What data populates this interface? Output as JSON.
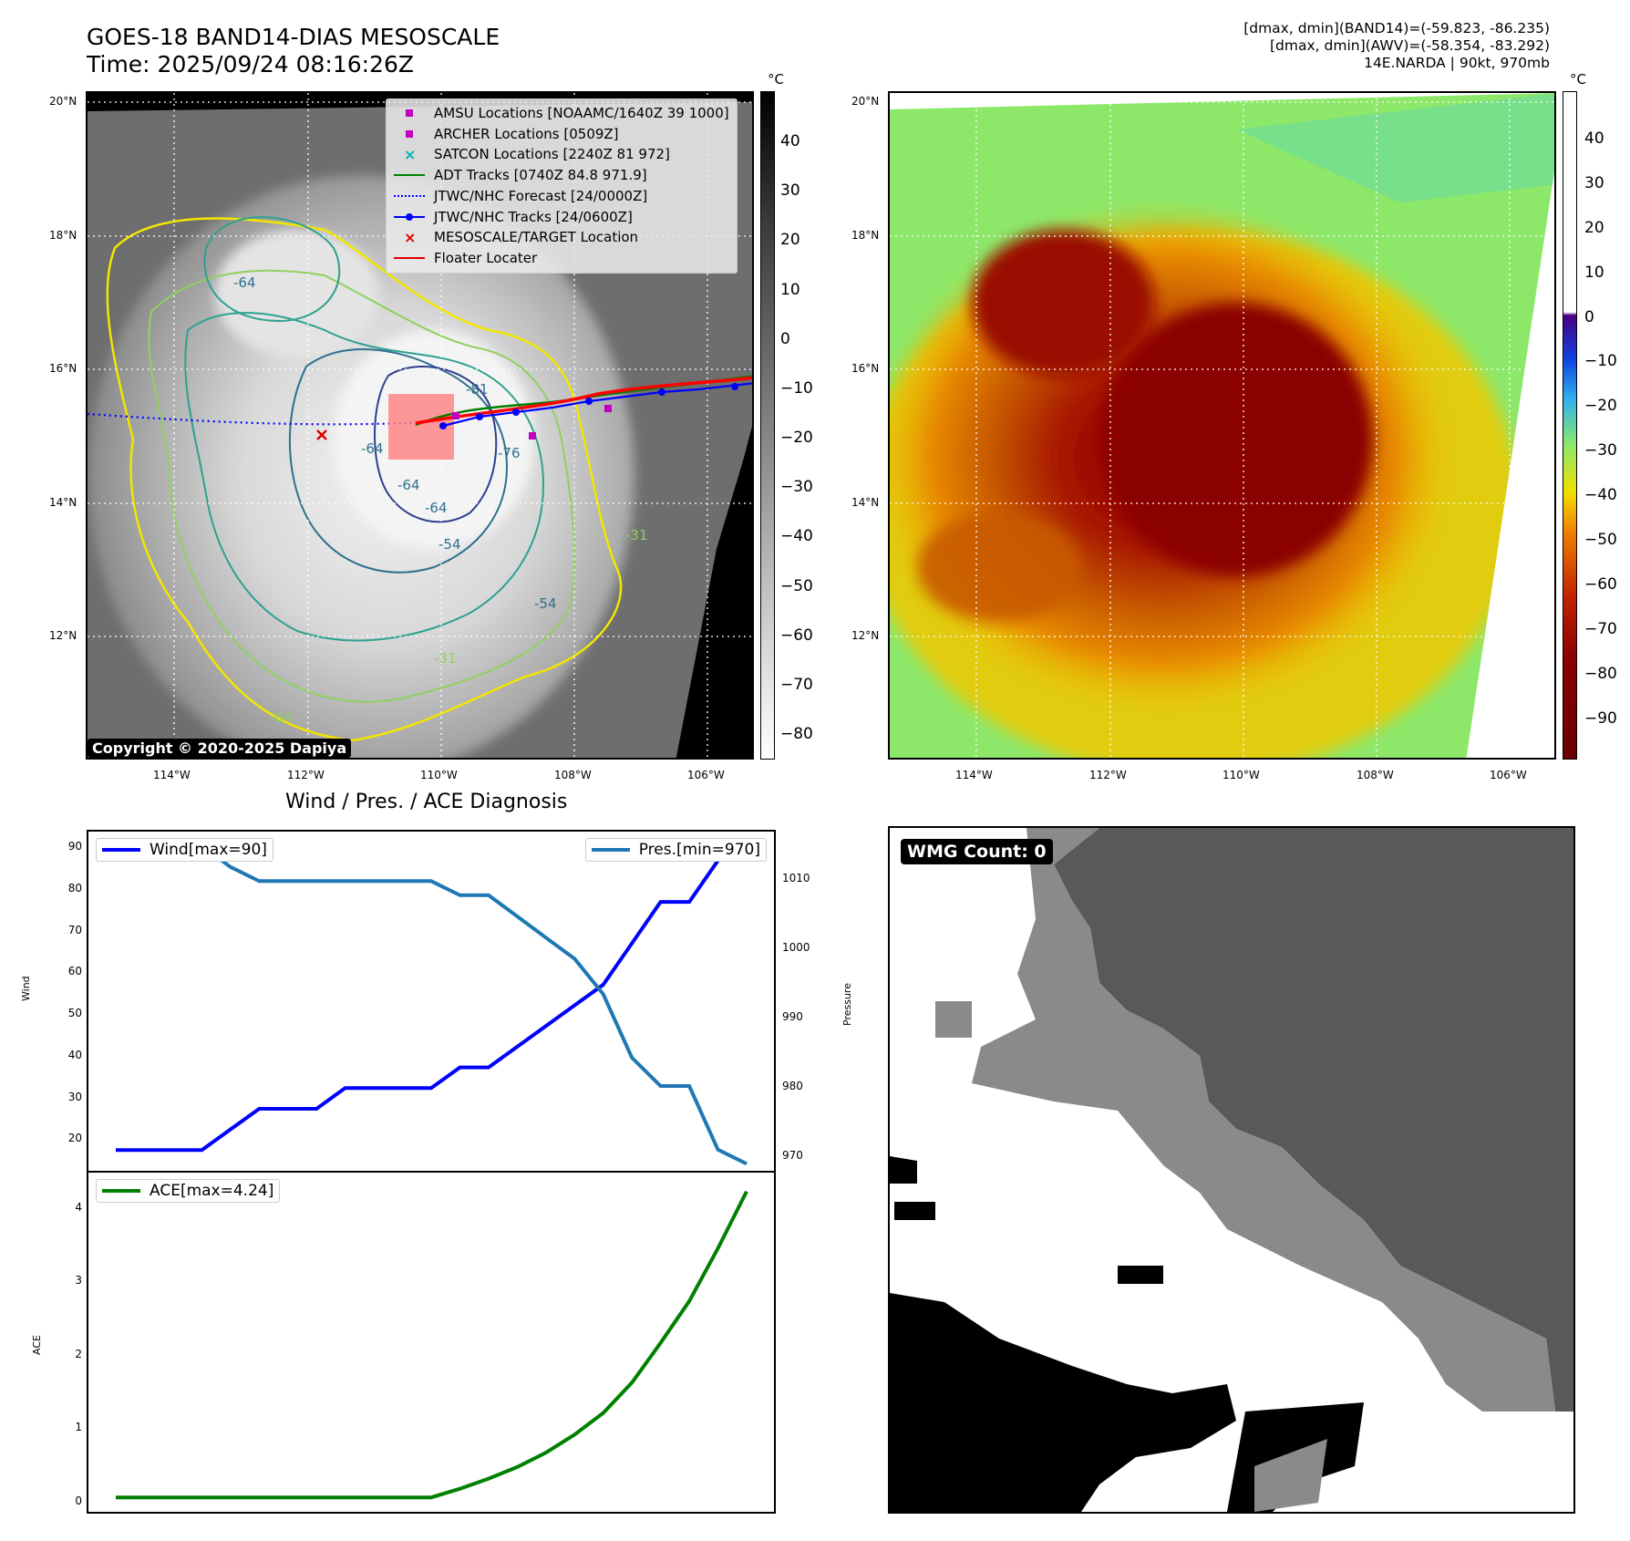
{
  "header": {
    "title_line1": "GOES-18 BAND14-DIAS MESOSCALE",
    "title_line2": "Time: 2025/09/24 08:16:26Z",
    "info_line1": "[dmax, dmin](BAND14)=(-59.823, -86.235)",
    "info_line2": "[dmax, dmin](AWV)=(-58.354, -83.292)",
    "info_line3": "14E.NARDA | 90kt, 970mb"
  },
  "map_axes": {
    "lat_ticks": [
      "20°N",
      "18°N",
      "16°N",
      "14°N",
      "12°N"
    ],
    "lon_ticks": [
      "114°W",
      "112°W",
      "110°W",
      "108°W",
      "106°W"
    ]
  },
  "ir_map": {
    "contour_labels": [
      "-64",
      "-64",
      "-64",
      "-64",
      "-76",
      "-81",
      "-54",
      "-54",
      "-31",
      "-31",
      "-64"
    ],
    "legend": [
      {
        "label": "AMSU Locations [NOAAMC/1640Z 39 1000]",
        "symbol": "square",
        "color": "#c000c0"
      },
      {
        "label": "ARCHER Locations [0509Z]",
        "symbol": "square",
        "color": "#c000c0"
      },
      {
        "label": "SATCON Locations [2240Z 81 972]",
        "symbol": "x",
        "color": "#00b3b3"
      },
      {
        "label": "ADT Tracks [0740Z 84.8 971.9]",
        "symbol": "line",
        "color": "#008000"
      },
      {
        "label": "JTWC/NHC Forecast [24/0000Z]",
        "symbol": "dotted",
        "color": "#0000ff"
      },
      {
        "label": "JTWC/NHC Tracks [24/0600Z]",
        "symbol": "line-dot",
        "color": "#0000ff"
      },
      {
        "label": "MESOSCALE/TARGET Location",
        "symbol": "x",
        "color": "#e00000"
      },
      {
        "label": "Floater Locater",
        "symbol": "line",
        "color": "#e00000"
      }
    ],
    "copyright": "Copyright © 2020-2025 Dapiya"
  },
  "colorbar_ir": {
    "unit": "°C",
    "ticks": [
      "40",
      "30",
      "20",
      "10",
      "0",
      "−10",
      "−20",
      "−30",
      "−40",
      "−50",
      "−60",
      "−70",
      "−80"
    ]
  },
  "colorbar_awv": {
    "unit": "°C",
    "ticks": [
      "40",
      "30",
      "20",
      "10",
      "0",
      "−10",
      "−20",
      "−30",
      "−40",
      "−50",
      "−60",
      "−70",
      "−80",
      "−90"
    ]
  },
  "diag": {
    "title": "Wind / Pres. / ACE Diagnosis",
    "wind_legend": "Wind[max=90]",
    "pres_legend": "Pres.[min=970]",
    "ace_legend": "ACE[max=4.24]",
    "wind_ylabel": "Wind",
    "pres_ylabel": "Pressure",
    "ace_ylabel": "ACE",
    "wind_ticks": [
      "90",
      "80",
      "70",
      "60",
      "50",
      "40",
      "30",
      "20"
    ],
    "pres_ticks": [
      "1010",
      "1000",
      "990",
      "980",
      "970"
    ],
    "ace_ticks": [
      "4",
      "3",
      "2",
      "1",
      "0"
    ]
  },
  "wmg": {
    "badge": "WMG Count: 0"
  },
  "chart_data": [
    {
      "type": "line",
      "name": "wind",
      "x": [
        0,
        1,
        2,
        3,
        4,
        5,
        6,
        7,
        8,
        9,
        10,
        11,
        12,
        13,
        14,
        15,
        16,
        17,
        18,
        19,
        20,
        21,
        22
      ],
      "values": [
        15,
        15,
        15,
        15,
        20,
        25,
        25,
        25,
        30,
        30,
        30,
        30,
        35,
        35,
        40,
        45,
        50,
        55,
        65,
        75,
        75,
        85,
        90
      ],
      "ylim": [
        10,
        92
      ],
      "color": "#0000ff"
    },
    {
      "type": "line",
      "name": "pressure",
      "x": [
        0,
        1,
        2,
        3,
        4,
        5,
        6,
        7,
        8,
        9,
        10,
        11,
        12,
        13,
        14,
        15,
        16,
        17,
        18,
        19,
        20,
        21,
        22
      ],
      "values": [
        1015,
        1015,
        1015,
        1015,
        1012,
        1010,
        1010,
        1010,
        1010,
        1010,
        1010,
        1010,
        1008,
        1008,
        1005,
        1002,
        999,
        994,
        985,
        981,
        981,
        972,
        970
      ],
      "ylim": [
        969,
        1017
      ],
      "color": "#1f77b4"
    },
    {
      "type": "line",
      "name": "ace",
      "x": [
        0,
        1,
        2,
        3,
        4,
        5,
        6,
        7,
        8,
        9,
        10,
        11,
        12,
        13,
        14,
        15,
        16,
        17,
        18,
        19,
        20,
        21,
        22
      ],
      "values": [
        0,
        0,
        0,
        0,
        0,
        0,
        0,
        0,
        0,
        0,
        0,
        0,
        0.12,
        0.26,
        0.42,
        0.62,
        0.87,
        1.17,
        1.59,
        2.14,
        2.72,
        3.45,
        4.24
      ],
      "ylim": [
        -0.2,
        4.5
      ],
      "color": "#008000"
    }
  ]
}
